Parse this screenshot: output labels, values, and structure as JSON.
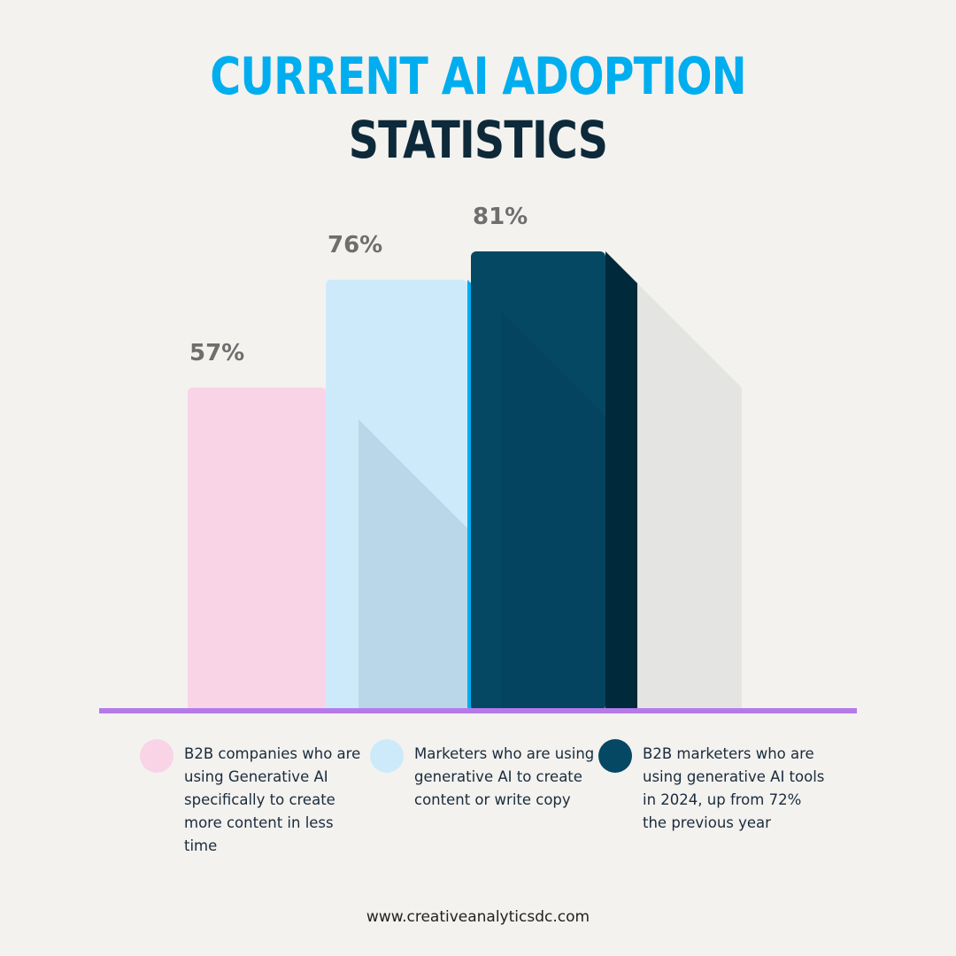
{
  "title": {
    "line1": "CURRENT AI ADOPTION",
    "line2": "STATISTICS"
  },
  "chart_data": {
    "type": "bar",
    "categories": [
      "B2B companies who are using Generative AI specifically to create more content in less time",
      "Marketers who are using generative AI to create content or write copy",
      "B2B marketers who are using generative AI tools in 2024, up from 72% the previous year"
    ],
    "values": [
      57,
      76,
      81
    ],
    "data_labels": [
      "57%",
      "76%",
      "81%"
    ],
    "unit": "%",
    "ylim": [
      0,
      100
    ],
    "grid": false,
    "legend_position": "bottom",
    "colors": {
      "front": [
        "#f9d4e6",
        "#cdeafb",
        "#054864"
      ],
      "side": [
        "#ec008c",
        "#00adef",
        "#00293b"
      ],
      "baseline": "#b57aea",
      "label": "#6e6e6e"
    }
  },
  "legend": [
    {
      "text": "B2B companies who are using Generative AI specifically to create more content in less time",
      "color": "#f9d4e6"
    },
    {
      "text": "Marketers who are using generative AI to create content or write copy",
      "color": "#cdeafb"
    },
    {
      "text": "B2B marketers who are using generative AI tools in 2024, up from 72% the previous year",
      "color": "#054864"
    }
  ],
  "footer": {
    "url": "www.creativeanalyticsdc.com"
  }
}
